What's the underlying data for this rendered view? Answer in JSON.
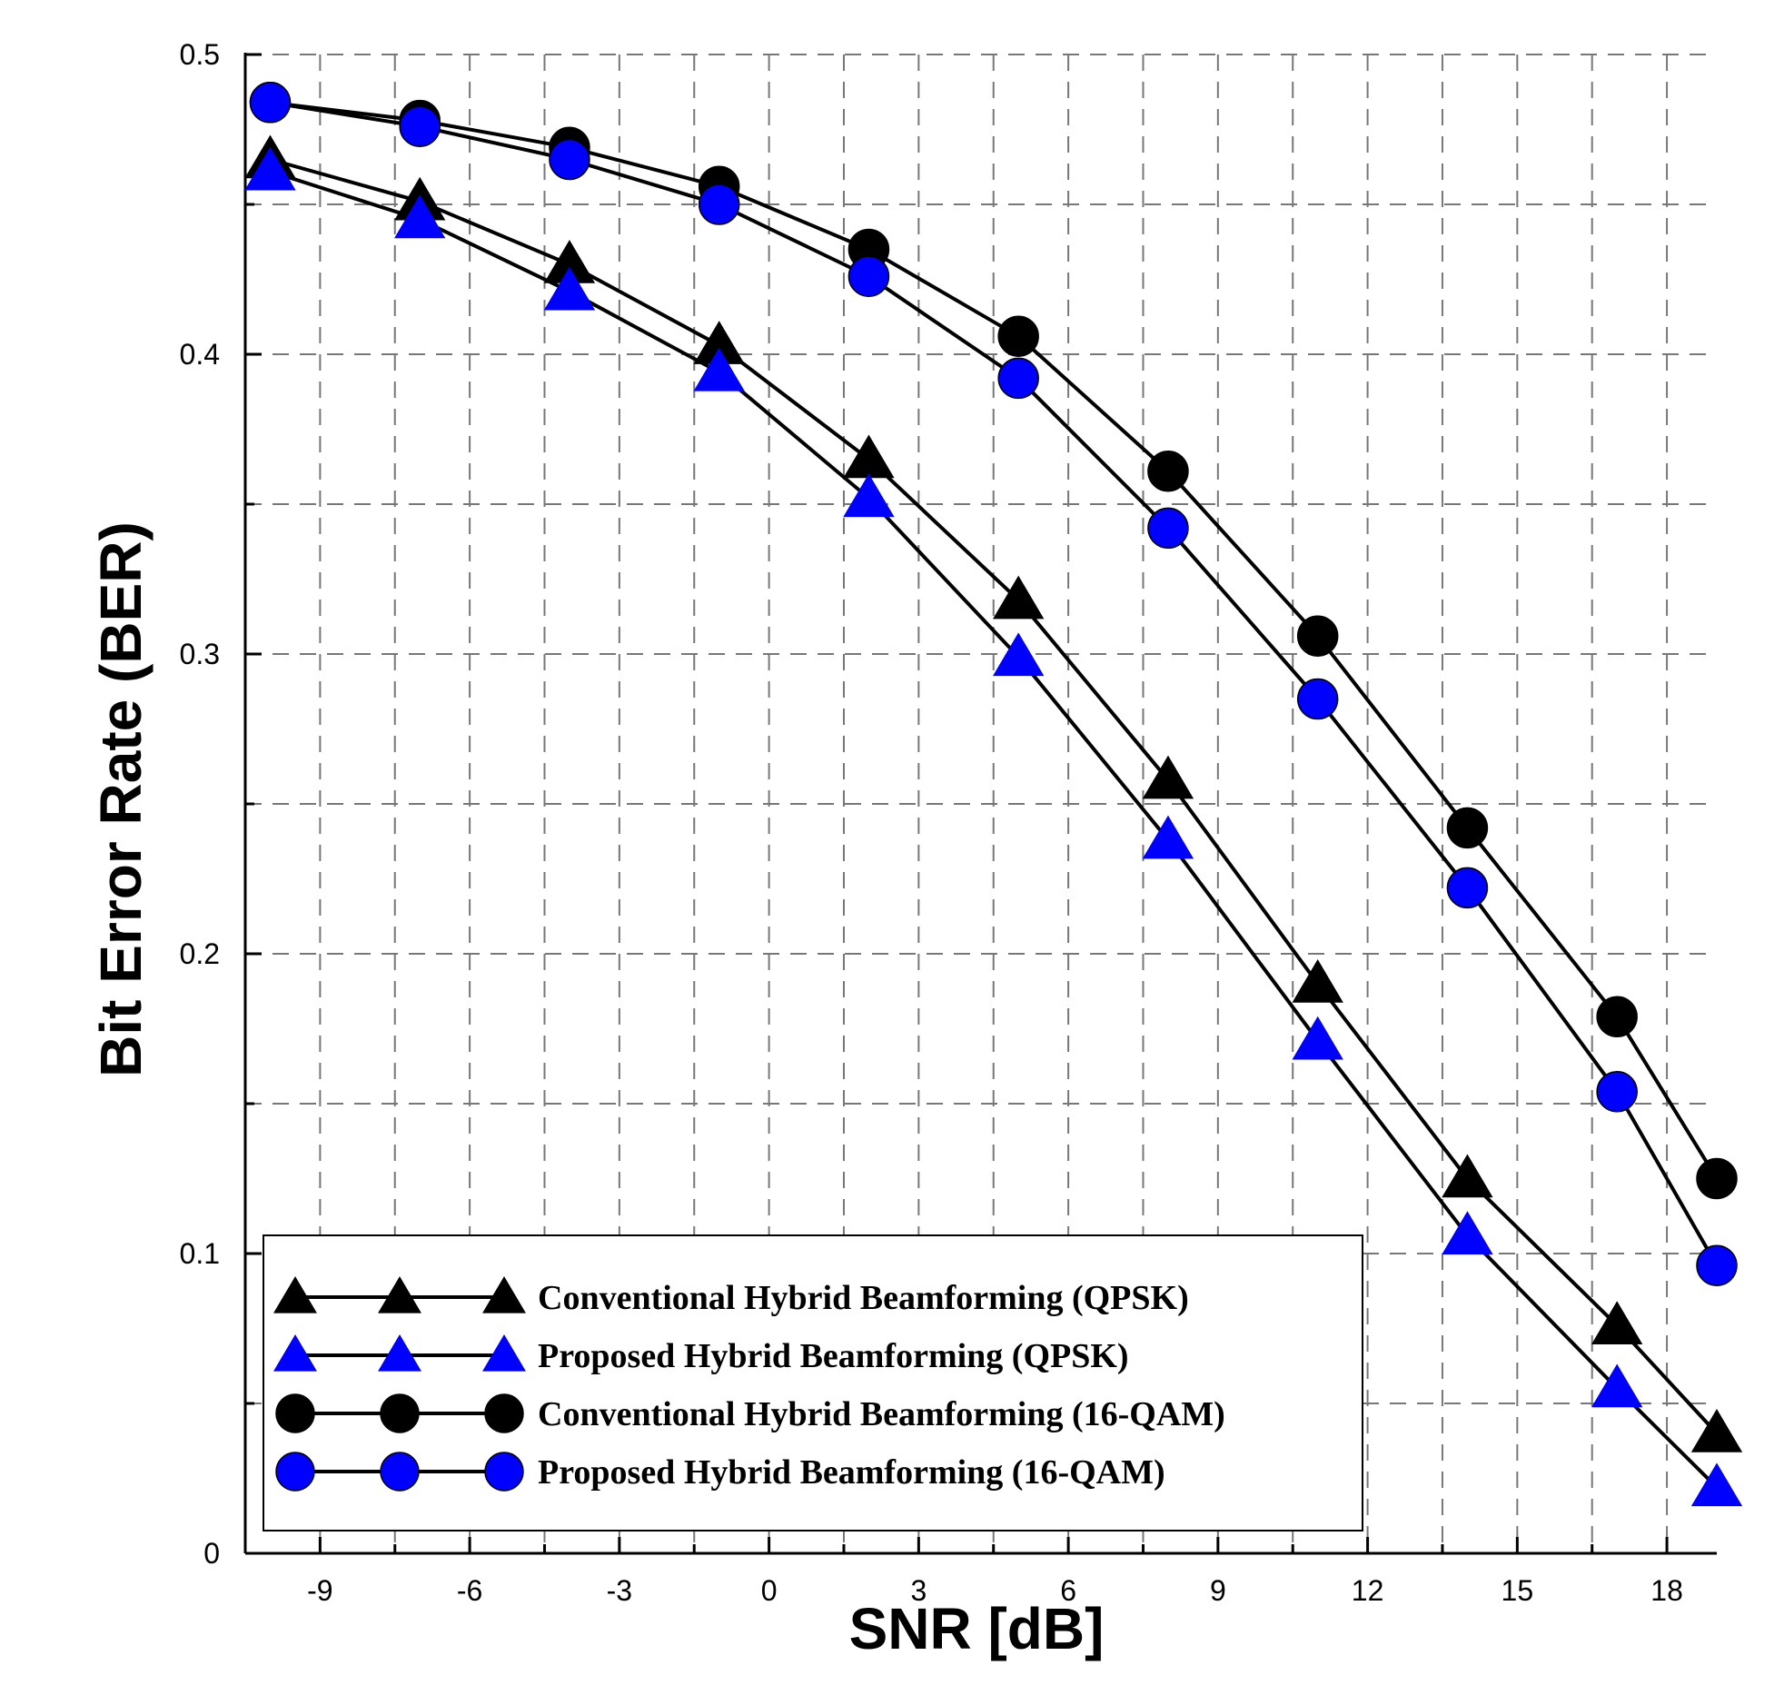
{
  "chart_data": {
    "type": "line",
    "title": "",
    "xlabel": "SNR [dB]",
    "ylabel": "Bit Error Rate (BER)",
    "xlim": [
      -10.5,
      19
    ],
    "ylim": [
      0,
      0.5
    ],
    "xticks": [
      -9,
      -6,
      -3,
      0,
      3,
      6,
      9,
      12,
      15,
      18
    ],
    "yticks": [
      0,
      0.1,
      0.2,
      0.3,
      0.4,
      0.5
    ],
    "ytick_labels": [
      "0",
      "0.1",
      "0.2",
      "0.3",
      "0.4",
      "0.5"
    ],
    "x": [
      -10,
      -7,
      -4,
      -1,
      2,
      5,
      8,
      11,
      14,
      17,
      19
    ],
    "grid": true,
    "legend_position": "bottom-left",
    "series": [
      {
        "name": "Conventional Hybrid Beamforming (QPSK)",
        "marker": "triangle",
        "color": "#000000",
        "values": [
          0.465,
          0.451,
          0.43,
          0.403,
          0.365,
          0.318,
          0.258,
          0.19,
          0.125,
          0.076,
          0.04
        ]
      },
      {
        "name": "Proposed Hybrid Beamforming (QPSK)",
        "marker": "triangle",
        "color": "#0000ff",
        "values": [
          0.461,
          0.445,
          0.421,
          0.394,
          0.352,
          0.299,
          0.238,
          0.171,
          0.106,
          0.055,
          0.022
        ]
      },
      {
        "name": "Conventional Hybrid Beamforming (16-QAM)",
        "marker": "circle",
        "color": "#000000",
        "values": [
          0.484,
          0.478,
          0.469,
          0.456,
          0.435,
          0.406,
          0.361,
          0.306,
          0.242,
          0.179,
          0.125
        ]
      },
      {
        "name": "Proposed Hybrid Beamforming (16-QAM)",
        "marker": "circle",
        "color": "#0000ff",
        "values": [
          0.484,
          0.476,
          0.465,
          0.45,
          0.426,
          0.392,
          0.342,
          0.285,
          0.222,
          0.154,
          0.096
        ]
      }
    ]
  }
}
